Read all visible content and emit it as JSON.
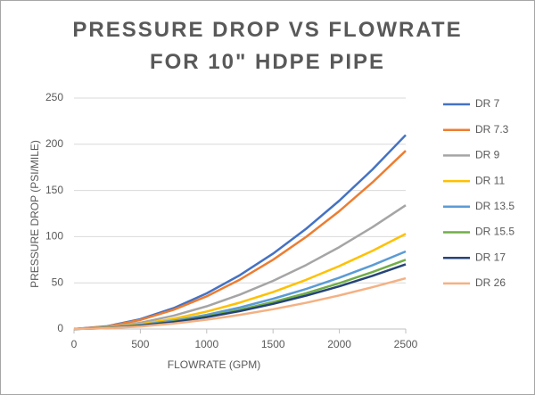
{
  "chart_data": {
    "type": "line",
    "title": "PRESSURE DROP VS FLOWRATE FOR 10\" HDPE PIPE",
    "x_label": "FLOWRATE (GPM)",
    "y_label": "PRESSURE DROP (PSI/MILE)",
    "x": [
      0,
      250,
      500,
      750,
      1000,
      1250,
      1500,
      1750,
      2000,
      2250,
      2500
    ],
    "series": [
      {
        "name": "DR 7",
        "color": "#4472c4",
        "values": [
          0,
          3.0,
          10.7,
          22.6,
          38.6,
          58.3,
          81.6,
          108.6,
          139.0,
          172.8,
          210
        ]
      },
      {
        "name": "DR 7.3",
        "color": "#ed7d31",
        "values": [
          0,
          2.7,
          9.8,
          20.8,
          35.4,
          53.5,
          75.0,
          99.8,
          127.7,
          158.8,
          193
        ]
      },
      {
        "name": "DR 9",
        "color": "#a5a5a5",
        "values": [
          0,
          1.9,
          6.8,
          14.4,
          24.6,
          37.2,
          52.1,
          69.3,
          88.7,
          110.3,
          134
        ]
      },
      {
        "name": "DR 11",
        "color": "#ffc000",
        "values": [
          0,
          1.5,
          5.2,
          11.1,
          18.9,
          28.6,
          40.0,
          53.3,
          68.2,
          84.7,
          103
        ]
      },
      {
        "name": "DR 13.5",
        "color": "#5b9bd5",
        "values": [
          0,
          1.2,
          4.3,
          9.0,
          15.4,
          23.3,
          32.7,
          43.4,
          55.6,
          69.1,
          84
        ]
      },
      {
        "name": "DR 15.5",
        "color": "#70ad47",
        "values": [
          0,
          1.1,
          3.8,
          8.1,
          13.8,
          20.8,
          29.2,
          38.8,
          49.6,
          61.7,
          75
        ]
      },
      {
        "name": "DR 17",
        "color": "#264478",
        "values": [
          0,
          1.0,
          3.6,
          7.5,
          12.9,
          19.4,
          27.2,
          36.2,
          46.3,
          57.6,
          70
        ]
      },
      {
        "name": "DR 26",
        "color": "#f4b183",
        "values": [
          0,
          0.8,
          2.8,
          5.9,
          10.1,
          15.3,
          21.4,
          28.4,
          36.4,
          45.3,
          55
        ]
      }
    ],
    "xlim": [
      0,
      2500
    ],
    "xticks": [
      0,
      500,
      1000,
      1500,
      2000,
      2500
    ],
    "ylim": [
      0,
      250
    ],
    "yticks": [
      0,
      50,
      100,
      150,
      200,
      250
    ],
    "grid": true,
    "legend": "right"
  }
}
